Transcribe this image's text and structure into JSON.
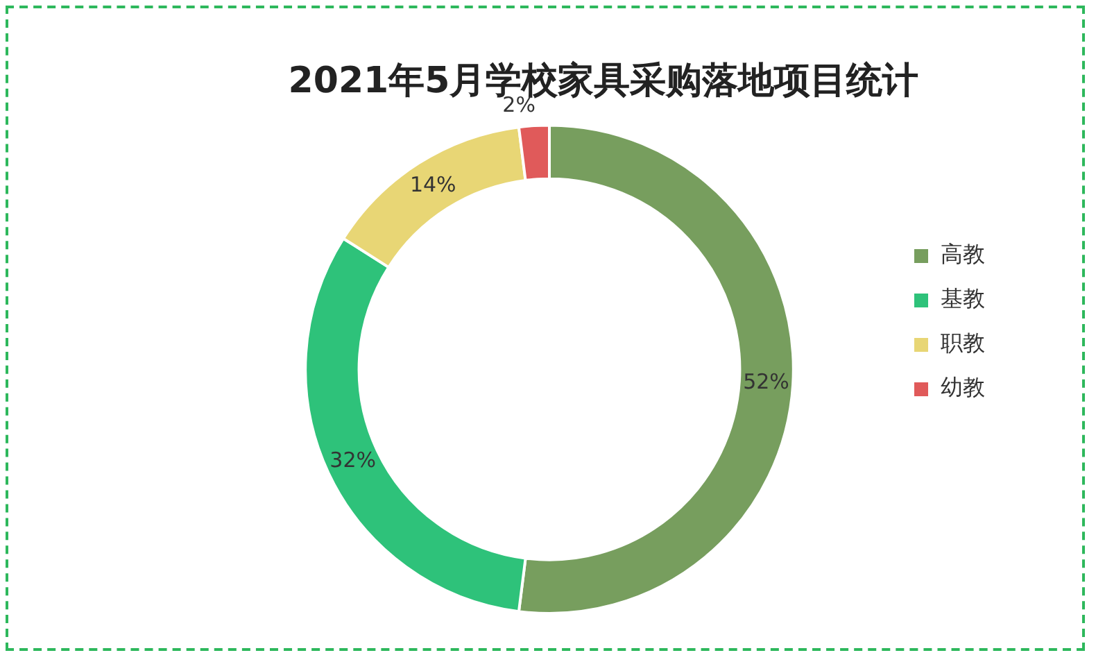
{
  "chart_data": {
    "type": "donut",
    "title": "2021年5月学校家具采购落地项目统计",
    "categories": [
      "高教",
      "基教",
      "职教",
      "幼教"
    ],
    "values": [
      52,
      32,
      14,
      2
    ],
    "colors": [
      "#779e5e",
      "#2ec27a",
      "#e8d675",
      "#e05a5a"
    ],
    "value_labels": [
      "52%",
      "32%",
      "14%",
      "2%"
    ],
    "legend": "right"
  }
}
